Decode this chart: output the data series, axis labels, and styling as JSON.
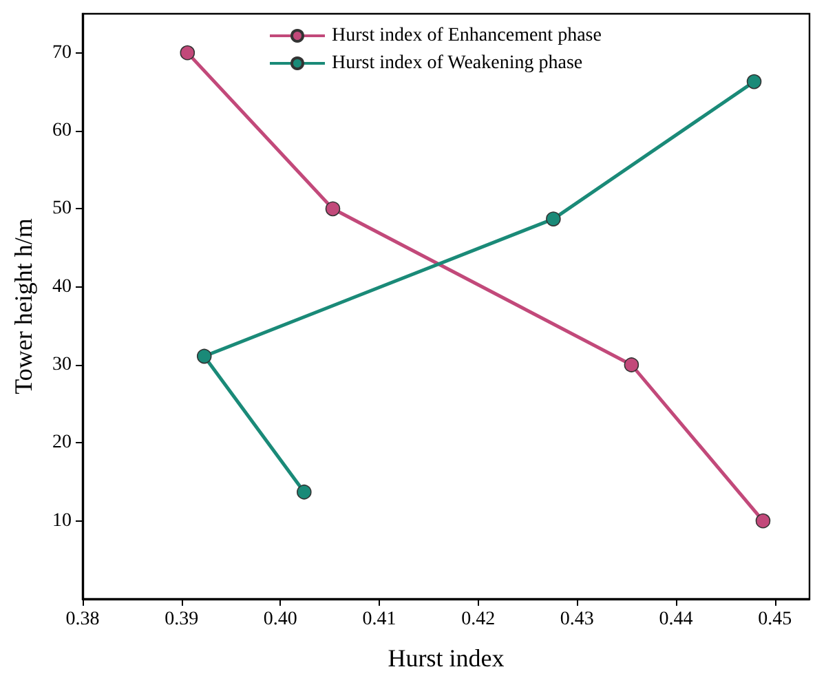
{
  "chart_data": {
    "type": "line",
    "xlabel": "Hurst index",
    "ylabel": "Tower height h/m",
    "xlim": [
      0.38,
      0.4535
    ],
    "xticks": [
      0.38,
      0.39,
      {
        "value": 0.4,
        "label": "0.40"
      },
      0.41,
      0.42,
      0.43,
      0.44,
      0.45
    ],
    "ylim": [
      0,
      75
    ],
    "yticks": [
      10,
      20,
      30,
      40,
      50,
      60,
      70
    ],
    "series": [
      {
        "name": "Hurst index of Enhancement phase",
        "color": "#c2497a",
        "x": [
          0.3906,
          0.4053,
          0.4355,
          0.4488
        ],
        "values": [
          70,
          50,
          30,
          10
        ]
      },
      {
        "name": "Hurst index of Weakening phase",
        "color": "#1a8a78",
        "x": [
          0.4024,
          0.3923,
          0.4276,
          0.4479
        ],
        "values": [
          13.7,
          31.1,
          48.7,
          66.3
        ]
      }
    ],
    "marker": "circle",
    "line_style": "solid",
    "legend": "top",
    "grid": false
  }
}
